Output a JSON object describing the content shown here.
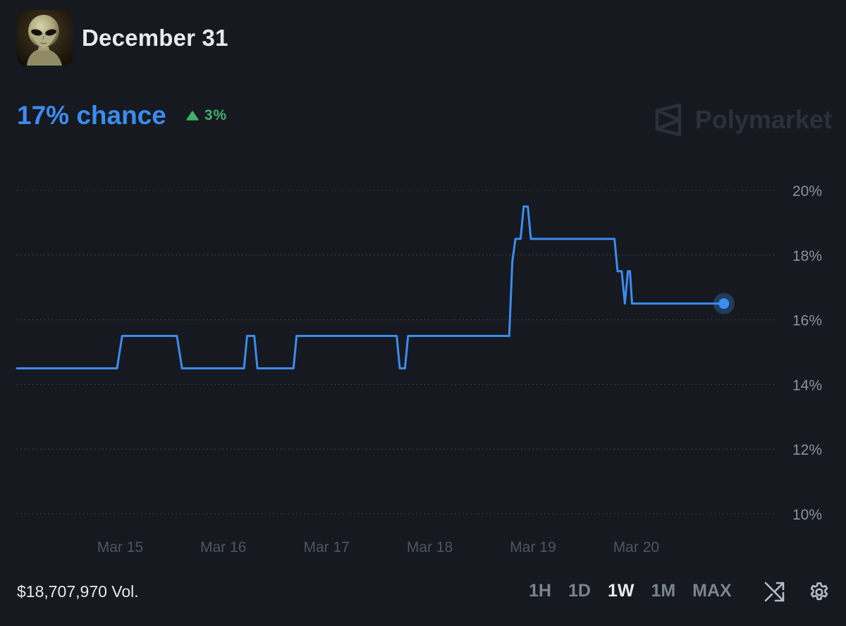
{
  "header": {
    "title": "December 31",
    "avatar_icon": "alien-avatar-icon"
  },
  "summary": {
    "chance_label": "17% chance",
    "change_label": "3%",
    "change_direction": "up",
    "change_color": "#3fb26d",
    "accent_color": "#3b8cf0"
  },
  "brand": {
    "name": "Polymarket",
    "icon": "polymarket-logo-icon"
  },
  "footer": {
    "volume": "$18,707,970 Vol.",
    "ranges": [
      "1H",
      "1D",
      "1W",
      "1M",
      "MAX"
    ],
    "active_range": "1W",
    "shuffle_icon": "shuffle-icon",
    "settings_icon": "gear-icon"
  },
  "chart_data": {
    "type": "line",
    "title": "",
    "xlabel": "",
    "ylabel": "",
    "x_domain": [
      14.0,
      21.35
    ],
    "x_ticks": [
      {
        "x": 15,
        "label": "Mar 15"
      },
      {
        "x": 16,
        "label": "Mar 16"
      },
      {
        "x": 17,
        "label": "Mar 17"
      },
      {
        "x": 18,
        "label": "Mar 18"
      },
      {
        "x": 19,
        "label": "Mar 19"
      },
      {
        "x": 20,
        "label": "Mar 20"
      }
    ],
    "ylim": [
      10,
      20
    ],
    "y_ticks": [
      {
        "y": 20,
        "label": "20%"
      },
      {
        "y": 18,
        "label": "18%"
      },
      {
        "y": 16,
        "label": "16%"
      },
      {
        "y": 14,
        "label": "14%"
      },
      {
        "y": 12,
        "label": "12%"
      },
      {
        "y": 10,
        "label": "10%"
      }
    ],
    "grid": true,
    "grid_style": "dotted",
    "series": [
      {
        "name": "December 31",
        "color": "#3b8cf0",
        "points": [
          [
            14.0,
            14.5
          ],
          [
            14.97,
            14.5
          ],
          [
            15.02,
            15.5
          ],
          [
            15.55,
            15.5
          ],
          [
            15.6,
            14.5
          ],
          [
            16.2,
            14.5
          ],
          [
            16.23,
            15.5
          ],
          [
            16.3,
            15.5
          ],
          [
            16.33,
            14.5
          ],
          [
            16.68,
            14.5
          ],
          [
            16.71,
            15.5
          ],
          [
            17.68,
            15.5
          ],
          [
            17.71,
            14.5
          ],
          [
            17.76,
            14.5
          ],
          [
            17.79,
            15.5
          ],
          [
            18.77,
            15.5
          ],
          [
            18.8,
            17.8
          ],
          [
            18.83,
            18.5
          ],
          [
            18.88,
            18.5
          ],
          [
            18.91,
            19.5
          ],
          [
            18.95,
            19.5
          ],
          [
            18.98,
            18.5
          ],
          [
            19.79,
            18.5
          ],
          [
            19.82,
            17.5
          ],
          [
            19.86,
            17.5
          ],
          [
            19.89,
            16.5
          ],
          [
            19.92,
            17.5
          ],
          [
            19.94,
            17.5
          ],
          [
            19.96,
            16.5
          ],
          [
            20.85,
            16.5
          ]
        ],
        "last_value": 16.5
      }
    ]
  }
}
